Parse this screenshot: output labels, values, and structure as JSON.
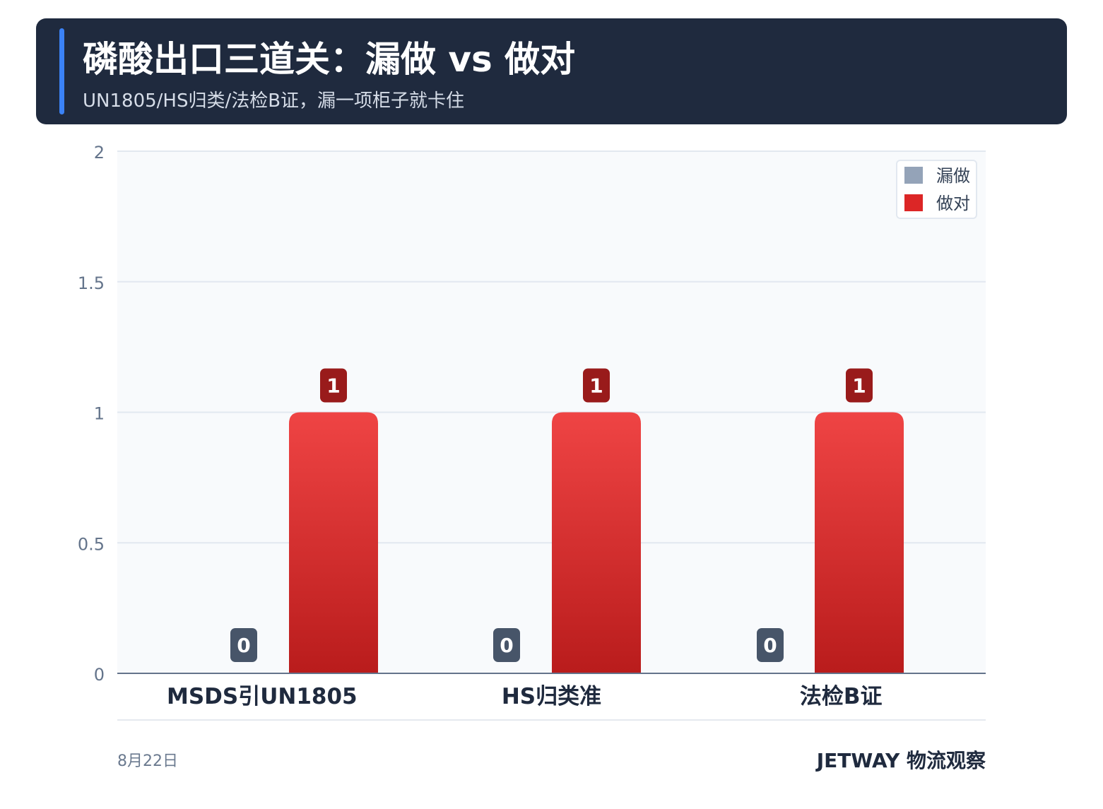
{
  "header": {
    "title": "磷酸出口三道关：漏做 vs 做对",
    "subtitle": "UN1805/HS归类/法检B证，漏一项柜子就卡住"
  },
  "footer": {
    "date": "8月22日",
    "brand": "JETWAY 物流观察"
  },
  "colors": {
    "header_bg": "#1f2a3e",
    "accent": "#3b82f6",
    "missed": "#94a3b8",
    "done_top": "#ef4444",
    "done_bottom": "#b91c1c",
    "done_label": "#991b1b",
    "missed_label": "#475569"
  },
  "chart_data": {
    "type": "bar",
    "categories": [
      "MSDS引UN1805",
      "HS归类准",
      "法检B证"
    ],
    "series": [
      {
        "name": "漏做",
        "values": [
          0,
          0,
          0
        ]
      },
      {
        "name": "做对",
        "values": [
          1,
          1,
          1
        ]
      }
    ],
    "ylim": [
      0,
      2
    ],
    "yticks": [
      "0",
      "0.5",
      "1",
      "1.5",
      "2"
    ],
    "grid": true,
    "legend": "top-right",
    "xlabel": "",
    "ylabel": ""
  }
}
